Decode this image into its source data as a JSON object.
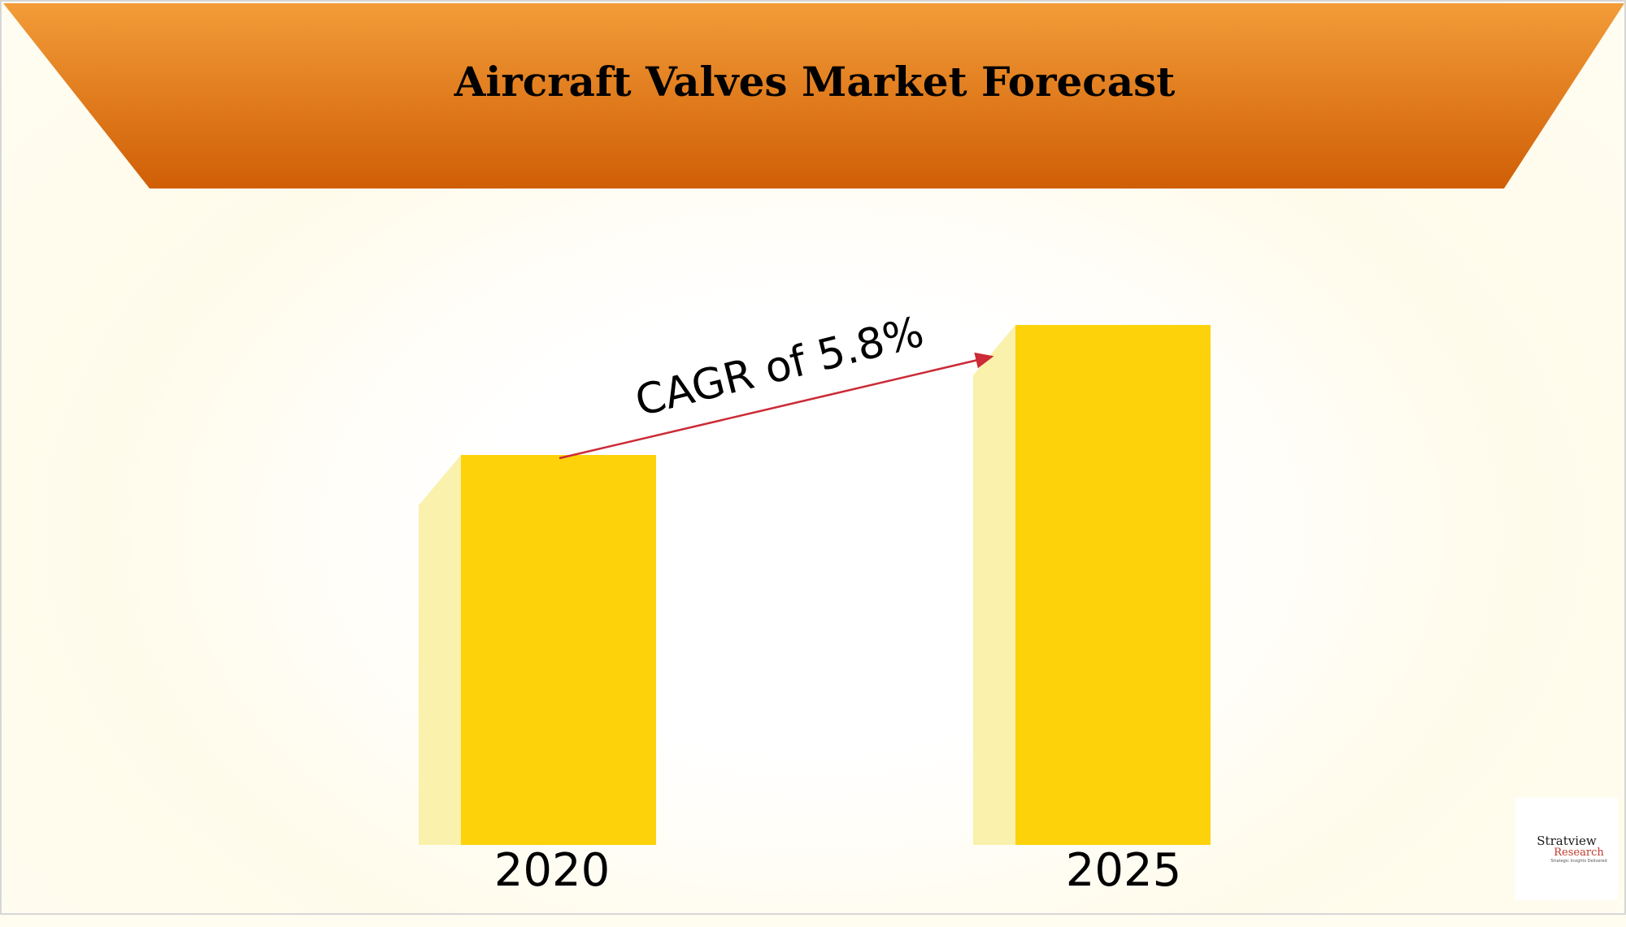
{
  "colors": {
    "banner_top": "#f29c38",
    "banner_bottom": "#d05e06",
    "bar_front": "#fdd20a",
    "bar_side": "#f9f1ac",
    "arrow": "#cc2a36"
  },
  "chart_data": {
    "type": "bar",
    "title": "Aircraft Valves Market Forecast",
    "categories": [
      "2020",
      "2025"
    ],
    "values": [
      0.75,
      1.0
    ],
    "value_note": "relative heights only; no values printed",
    "annotation": "CAGR of 5.8%",
    "xlabel": "",
    "ylabel": "",
    "grid": false,
    "legend": "none"
  },
  "logo": {
    "name": "Stratview",
    "sub": "Research",
    "tagline": "Strategic Insights Delivered"
  }
}
